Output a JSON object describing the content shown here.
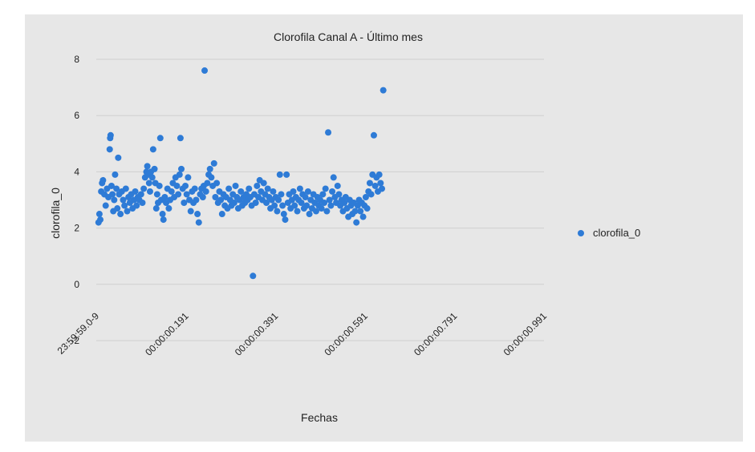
{
  "chart_data": {
    "type": "scatter",
    "title": "Clorofila Canal A - Último mes",
    "xlabel": "Fechas",
    "ylabel": "clorofila_0",
    "x_range": [
      0,
      1
    ],
    "ylim": [
      -2,
      8
    ],
    "y_ticks": [
      -2,
      0,
      2,
      4,
      6,
      8
    ],
    "x_tick_labels": [
      {
        "value": 0.0,
        "label": "23:59:59.0-9"
      },
      {
        "value": 0.2,
        "label": "00:00:00.191"
      },
      {
        "value": 0.4,
        "label": "00:00:00.391"
      },
      {
        "value": 0.6,
        "label": "00:00:00.591"
      },
      {
        "value": 0.8,
        "label": "00:00:00.791"
      },
      {
        "value": 1.0,
        "label": "00:00:00.991"
      }
    ],
    "grid": true,
    "legend_position": "right",
    "series": [
      {
        "name": "clorofila_0",
        "color": "#2e7bd6",
        "points": [
          [
            0.005,
            2.2
          ],
          [
            0.007,
            2.5
          ],
          [
            0.009,
            2.3
          ],
          [
            0.011,
            3.3
          ],
          [
            0.013,
            3.6
          ],
          [
            0.015,
            3.7
          ],
          [
            0.018,
            3.2
          ],
          [
            0.021,
            2.8
          ],
          [
            0.024,
            3.4
          ],
          [
            0.027,
            3.1
          ],
          [
            0.03,
            4.8
          ],
          [
            0.031,
            5.2
          ],
          [
            0.032,
            5.3
          ],
          [
            0.034,
            3.5
          ],
          [
            0.036,
            3.2
          ],
          [
            0.038,
            2.6
          ],
          [
            0.04,
            3.0
          ],
          [
            0.042,
            3.9
          ],
          [
            0.045,
            3.4
          ],
          [
            0.047,
            2.7
          ],
          [
            0.049,
            4.5
          ],
          [
            0.051,
            3.2
          ],
          [
            0.054,
            2.5
          ],
          [
            0.057,
            3.3
          ],
          [
            0.06,
            3.0
          ],
          [
            0.063,
            2.8
          ],
          [
            0.066,
            3.4
          ],
          [
            0.069,
            2.6
          ],
          [
            0.072,
            3.1
          ],
          [
            0.075,
            2.9
          ],
          [
            0.078,
            3.2
          ],
          [
            0.081,
            2.7
          ],
          [
            0.084,
            3.0
          ],
          [
            0.087,
            3.3
          ],
          [
            0.09,
            2.8
          ],
          [
            0.093,
            3.1
          ],
          [
            0.096,
            3.0
          ],
          [
            0.1,
            3.2
          ],
          [
            0.103,
            2.9
          ],
          [
            0.106,
            3.4
          ],
          [
            0.109,
            3.8
          ],
          [
            0.112,
            4.0
          ],
          [
            0.114,
            4.2
          ],
          [
            0.116,
            3.9
          ],
          [
            0.118,
            3.6
          ],
          [
            0.12,
            3.3
          ],
          [
            0.122,
            4.0
          ],
          [
            0.125,
            3.8
          ],
          [
            0.127,
            4.8
          ],
          [
            0.13,
            4.1
          ],
          [
            0.132,
            3.6
          ],
          [
            0.134,
            2.7
          ],
          [
            0.136,
            3.2
          ],
          [
            0.138,
            2.9
          ],
          [
            0.141,
            3.5
          ],
          [
            0.143,
            5.2
          ],
          [
            0.145,
            3.0
          ],
          [
            0.148,
            2.5
          ],
          [
            0.15,
            2.3
          ],
          [
            0.153,
            3.1
          ],
          [
            0.156,
            2.9
          ],
          [
            0.159,
            3.4
          ],
          [
            0.162,
            2.7
          ],
          [
            0.165,
            3.0
          ],
          [
            0.168,
            3.3
          ],
          [
            0.171,
            3.6
          ],
          [
            0.174,
            3.1
          ],
          [
            0.177,
            3.8
          ],
          [
            0.18,
            3.5
          ],
          [
            0.183,
            3.2
          ],
          [
            0.186,
            3.9
          ],
          [
            0.188,
            5.2
          ],
          [
            0.19,
            4.1
          ],
          [
            0.193,
            3.4
          ],
          [
            0.196,
            2.9
          ],
          [
            0.199,
            3.5
          ],
          [
            0.202,
            3.2
          ],
          [
            0.205,
            3.8
          ],
          [
            0.208,
            3.0
          ],
          [
            0.211,
            2.6
          ],
          [
            0.214,
            3.3
          ],
          [
            0.217,
            2.9
          ],
          [
            0.22,
            3.4
          ],
          [
            0.223,
            3.0
          ],
          [
            0.226,
            2.5
          ],
          [
            0.229,
            2.2
          ],
          [
            0.232,
            3.2
          ],
          [
            0.235,
            3.4
          ],
          [
            0.238,
            3.1
          ],
          [
            0.24,
            3.5
          ],
          [
            0.242,
            7.6
          ],
          [
            0.245,
            3.3
          ],
          [
            0.248,
            3.6
          ],
          [
            0.251,
            3.9
          ],
          [
            0.254,
            4.1
          ],
          [
            0.257,
            3.8
          ],
          [
            0.26,
            3.5
          ],
          [
            0.263,
            4.3
          ],
          [
            0.266,
            3.1
          ],
          [
            0.269,
            3.6
          ],
          [
            0.272,
            2.9
          ],
          [
            0.275,
            3.3
          ],
          [
            0.278,
            3.0
          ],
          [
            0.281,
            2.5
          ],
          [
            0.284,
            3.2
          ],
          [
            0.287,
            2.8
          ],
          [
            0.29,
            3.1
          ],
          [
            0.293,
            2.7
          ],
          [
            0.296,
            3.4
          ],
          [
            0.299,
            3.0
          ],
          [
            0.302,
            2.8
          ],
          [
            0.305,
            3.2
          ],
          [
            0.308,
            2.9
          ],
          [
            0.311,
            3.5
          ],
          [
            0.314,
            3.1
          ],
          [
            0.317,
            2.7
          ],
          [
            0.32,
            3.0
          ],
          [
            0.323,
            3.3
          ],
          [
            0.326,
            2.8
          ],
          [
            0.329,
            3.1
          ],
          [
            0.332,
            2.9
          ],
          [
            0.335,
            3.2
          ],
          [
            0.338,
            3.0
          ],
          [
            0.341,
            3.4
          ],
          [
            0.344,
            3.1
          ],
          [
            0.347,
            2.8
          ],
          [
            0.35,
            0.3
          ],
          [
            0.353,
            3.2
          ],
          [
            0.356,
            2.9
          ],
          [
            0.359,
            3.5
          ],
          [
            0.362,
            3.1
          ],
          [
            0.365,
            3.7
          ],
          [
            0.368,
            3.3
          ],
          [
            0.371,
            3.0
          ],
          [
            0.374,
            3.6
          ],
          [
            0.377,
            3.2
          ],
          [
            0.38,
            2.9
          ],
          [
            0.383,
            3.4
          ],
          [
            0.386,
            3.1
          ],
          [
            0.389,
            2.7
          ],
          [
            0.392,
            3.0
          ],
          [
            0.395,
            3.3
          ],
          [
            0.398,
            2.8
          ],
          [
            0.401,
            3.1
          ],
          [
            0.404,
            2.6
          ],
          [
            0.407,
            3.0
          ],
          [
            0.41,
            3.9
          ],
          [
            0.413,
            3.2
          ],
          [
            0.416,
            2.8
          ],
          [
            0.419,
            2.5
          ],
          [
            0.422,
            2.3
          ],
          [
            0.425,
            3.9
          ],
          [
            0.428,
            2.9
          ],
          [
            0.431,
            3.2
          ],
          [
            0.434,
            2.7
          ],
          [
            0.437,
            3.0
          ],
          [
            0.44,
            3.3
          ],
          [
            0.443,
            2.8
          ],
          [
            0.446,
            3.1
          ],
          [
            0.449,
            2.6
          ],
          [
            0.452,
            3.0
          ],
          [
            0.455,
            3.4
          ],
          [
            0.458,
            2.9
          ],
          [
            0.461,
            3.2
          ],
          [
            0.464,
            2.7
          ],
          [
            0.467,
            3.1
          ],
          [
            0.47,
            2.8
          ],
          [
            0.473,
            3.3
          ],
          [
            0.476,
            2.5
          ],
          [
            0.479,
            3.0
          ],
          [
            0.482,
            2.7
          ],
          [
            0.485,
            3.2
          ],
          [
            0.488,
            2.9
          ],
          [
            0.491,
            2.6
          ],
          [
            0.494,
            3.1
          ],
          [
            0.497,
            2.8
          ],
          [
            0.5,
            3.0
          ],
          [
            0.503,
            2.7
          ],
          [
            0.506,
            3.2
          ],
          [
            0.509,
            2.9
          ],
          [
            0.512,
            3.4
          ],
          [
            0.515,
            2.6
          ],
          [
            0.518,
            5.4
          ],
          [
            0.521,
            3.0
          ],
          [
            0.524,
            2.8
          ],
          [
            0.527,
            3.3
          ],
          [
            0.53,
            3.8
          ],
          [
            0.533,
            3.1
          ],
          [
            0.536,
            2.9
          ],
          [
            0.539,
            3.5
          ],
          [
            0.542,
            3.2
          ],
          [
            0.545,
            2.8
          ],
          [
            0.548,
            3.0
          ],
          [
            0.551,
            2.6
          ],
          [
            0.554,
            2.9
          ],
          [
            0.557,
            3.1
          ],
          [
            0.56,
            2.7
          ],
          [
            0.563,
            2.4
          ],
          [
            0.566,
            3.0
          ],
          [
            0.569,
            2.8
          ],
          [
            0.572,
            2.5
          ],
          [
            0.575,
            2.9
          ],
          [
            0.578,
            2.6
          ],
          [
            0.581,
            2.2
          ],
          [
            0.584,
            2.8
          ],
          [
            0.587,
            3.0
          ],
          [
            0.59,
            2.6
          ],
          [
            0.593,
            2.9
          ],
          [
            0.596,
            2.4
          ],
          [
            0.599,
            2.8
          ],
          [
            0.602,
            3.1
          ],
          [
            0.605,
            2.7
          ],
          [
            0.608,
            3.3
          ],
          [
            0.611,
            3.6
          ],
          [
            0.614,
            3.2
          ],
          [
            0.617,
            3.9
          ],
          [
            0.62,
            5.3
          ],
          [
            0.623,
            3.5
          ],
          [
            0.626,
            3.8
          ],
          [
            0.629,
            3.3
          ],
          [
            0.632,
            3.9
          ],
          [
            0.635,
            3.6
          ],
          [
            0.638,
            3.4
          ],
          [
            0.641,
            6.9
          ]
        ]
      }
    ]
  }
}
